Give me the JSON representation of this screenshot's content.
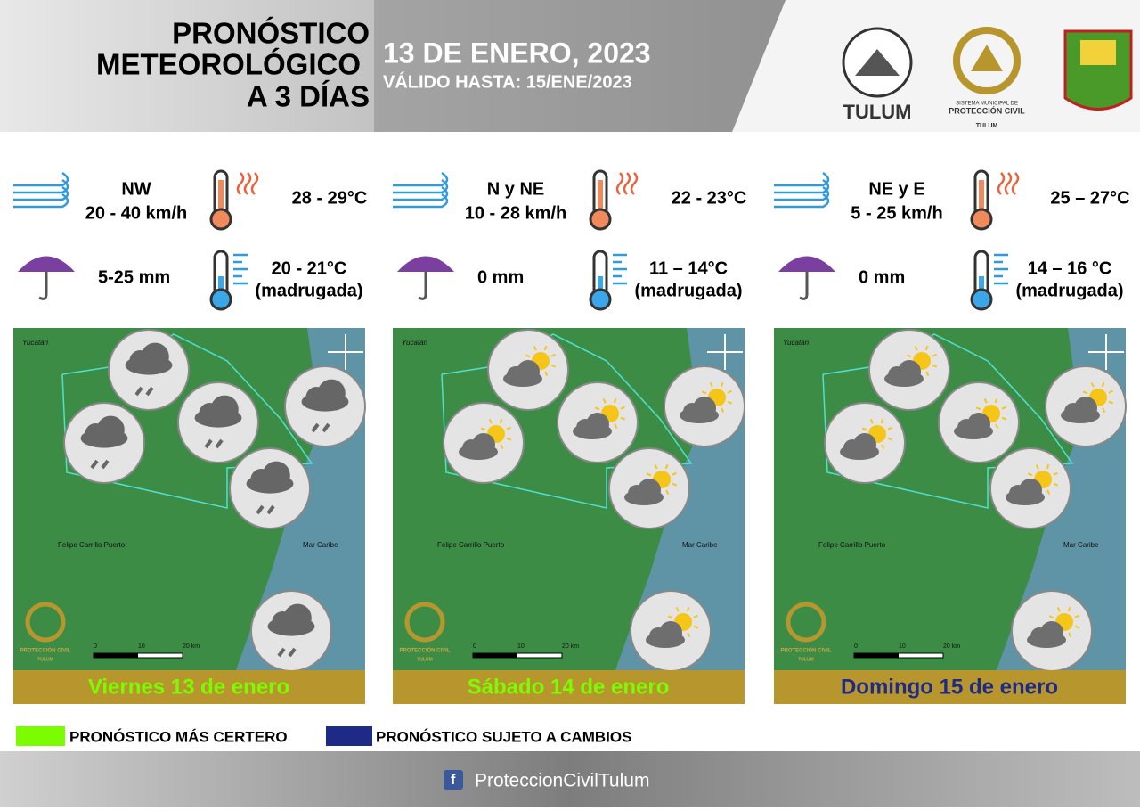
{
  "header": {
    "title": [
      "PRONÓSTICO",
      "METEOROLÓGICO",
      "A 3 DÍAS"
    ],
    "date": "13 DE ENERO, 2023",
    "valid": "VÁLIDO HASTA: 15/ENE/2023"
  },
  "logos": {
    "tulum": "TULUM",
    "pc_small": "SISTEMA MUNICIPAL DE",
    "pc": "PROTECCIÓN CIVIL",
    "pc_city": "TULUM"
  },
  "days": [
    {
      "wind_dir": "NW",
      "wind_speed": "20 - 40 km/h",
      "temp_max": "28 - 29°C",
      "rain": "5-25 mm",
      "temp_min": "20 - 21°C",
      "temp_min_note": "(madrugada)",
      "caption": "Viernes 13 de enero",
      "caption_color": "#7cfc00"
    },
    {
      "wind_dir": "N y NE",
      "wind_speed": "10 - 28 km/h",
      "temp_max": "22 - 23°C",
      "rain": "0 mm",
      "temp_min": "11 – 14°C",
      "temp_min_note": "(madrugada)",
      "caption": "Sábado 14 de enero",
      "caption_color": "#7cfc00"
    },
    {
      "wind_dir": "NE y E",
      "wind_speed": "5 - 25 km/h",
      "temp_max": "25 – 27°C",
      "rain": "0 mm",
      "temp_min": "14 – 16 °C",
      "temp_min_note": "(madrugada)",
      "caption": "Domingo 15 de enero",
      "caption_color": "#1f2a87"
    }
  ],
  "map_labels": {
    "state": "Yucatán",
    "town": "Felipe Carrillo Puerto",
    "sea": "Mar Caribe",
    "scale": [
      "0",
      "10",
      "20 km"
    ]
  },
  "legend": [
    {
      "label": "PRONÓSTICO MÁS CERTERO",
      "color": "#7cfc00"
    },
    {
      "label": "PRONÓSTICO SUJETO A CAMBIOS",
      "color": "#1f2a87"
    }
  ],
  "footer": "ProteccionCivilTulum"
}
